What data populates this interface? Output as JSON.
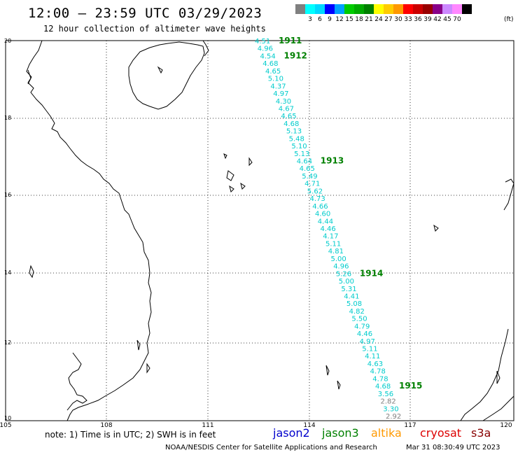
{
  "header": {
    "title": "12:00 — 23:59 UTC 03/29/2023",
    "subtitle": "12 hour collection of altimeter wave heights"
  },
  "colorbar": {
    "labels": [
      "3",
      "6",
      "9",
      "12",
      "15",
      "18",
      "21",
      "24",
      "27",
      "30",
      "33",
      "36",
      "39",
      "42",
      "45",
      "70"
    ],
    "colors": [
      "#808080",
      "#00ffff",
      "#00d8ff",
      "#0000ff",
      "#00a0ff",
      "#00cc00",
      "#00aa00",
      "#008000",
      "#ffff00",
      "#ffcc00",
      "#ff9900",
      "#ff0000",
      "#cc0000",
      "#990000",
      "#880088",
      "#cc88ff",
      "#ff88ff",
      "#000000"
    ],
    "unit": "(ft)"
  },
  "axes": {
    "lat_labels": [
      "20",
      "18",
      "16",
      "14",
      "12",
      "10"
    ],
    "lon_labels": [
      "105",
      "108",
      "111",
      "114",
      "117",
      "120"
    ]
  },
  "track": {
    "swh_color": "#00cccc",
    "low_color": "#808080",
    "cycle_color": "#008000",
    "values": [
      "4.51",
      "4.96",
      "4.54",
      "4.68",
      "4.65",
      "5.10",
      "4.37",
      "4.97",
      "4.30",
      "4.67",
      "4.65",
      "4.68",
      "5.13",
      "5.48",
      "5.10",
      "5.13",
      "4.64",
      "4.65",
      "5.49",
      "4.71",
      "5.62",
      "4.73",
      "4.66",
      "4.60",
      "4.44",
      "4.46",
      "4.17",
      "5.11",
      "4.81",
      "5.00",
      "4.96",
      "5.26",
      "5.00",
      "5.31",
      "4.41",
      "5.08",
      "4.82",
      "5.50",
      "4.79",
      "4.46",
      "4.97",
      "5.11",
      "4.11",
      "4.63",
      "4.78",
      "4.78",
      "4.68",
      "3.56",
      "2.82",
      "3.30",
      "2.92"
    ],
    "cycles": [
      "1911",
      "1912",
      "1913",
      "1914",
      "1915"
    ]
  },
  "footer": {
    "note": "note: 1) Time is in UTC; 2) SWH is in feet",
    "missions": [
      {
        "name": "jason2",
        "color": "#0000cc"
      },
      {
        "name": "jason3",
        "color": "#008000"
      },
      {
        "name": "altika",
        "color": "#ff9900"
      },
      {
        "name": "cryosat",
        "color": "#dd0000"
      },
      {
        "name": "s3a",
        "color": "#880000"
      }
    ],
    "credit": "NOAA/NESDIS Center for Satellite Applications and Research",
    "timestamp": "Mar 31 08:30:49 UTC 2023"
  }
}
